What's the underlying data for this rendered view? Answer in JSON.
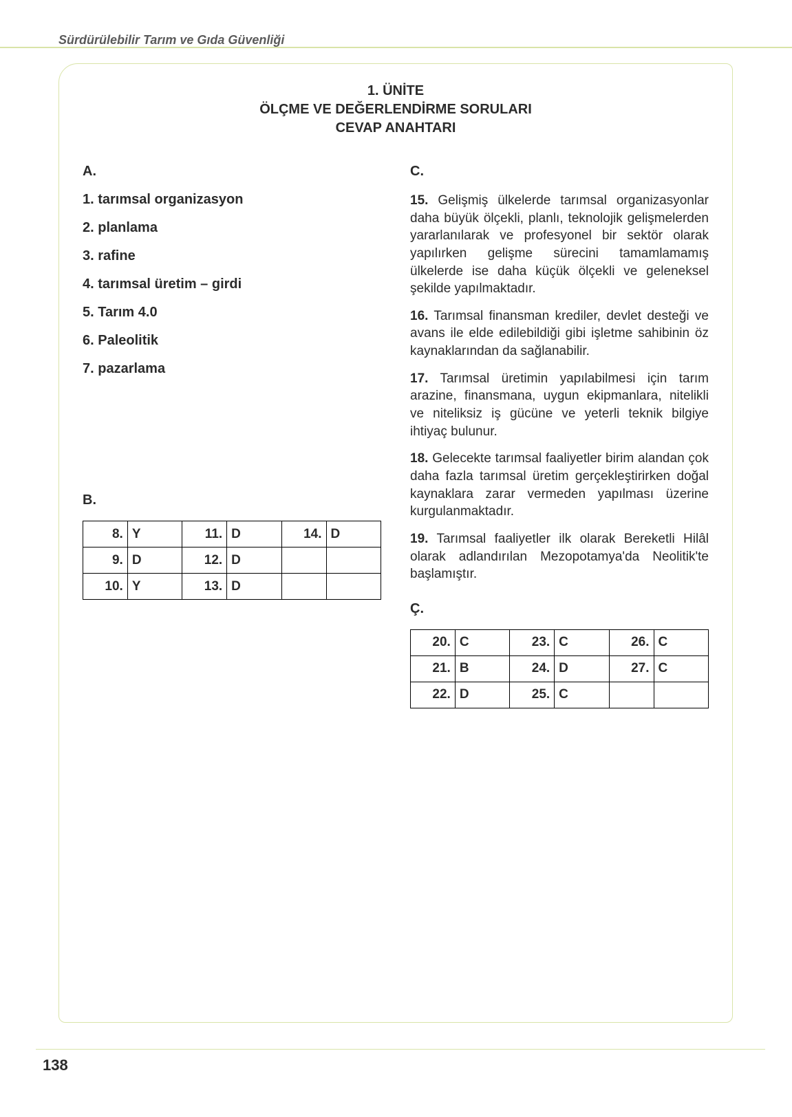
{
  "header": {
    "running_title": "Sürdürülebilir Tarım ve Gıda Güvenliği"
  },
  "title": {
    "line1": "1. ÜNİTE",
    "line2": "ÖLÇME VE DEĞERLENDİRME SORULARI",
    "line3": "CEVAP ANAHTARI"
  },
  "sectionA": {
    "label": "A.",
    "items": [
      "1. tarımsal organizasyon",
      "2. planlama",
      "3. rafine",
      "4. tarımsal üretim – girdi",
      "5. Tarım 4.0",
      "6. Paleolitik",
      "7. pazarlama"
    ]
  },
  "sectionB": {
    "label": "B.",
    "rows": [
      [
        {
          "n": "8.",
          "a": "Y"
        },
        {
          "n": "11.",
          "a": "D"
        },
        {
          "n": "14.",
          "a": "D"
        }
      ],
      [
        {
          "n": "9.",
          "a": "D"
        },
        {
          "n": "12.",
          "a": "D"
        },
        {
          "n": "",
          "a": ""
        }
      ],
      [
        {
          "n": "10.",
          "a": "Y"
        },
        {
          "n": "13.",
          "a": "D"
        },
        {
          "n": "",
          "a": ""
        }
      ]
    ]
  },
  "sectionC": {
    "label": "C.",
    "paras": [
      {
        "n": "15.",
        "t": "Gelişmiş ülkelerde tarımsal organizasyonlar daha büyük ölçekli, planlı, teknolojik gelişmelerden yararlanılarak ve profesyonel bir sektör olarak yapılırken gelişme sürecini tamamlamamış ülkelerde ise daha küçük ölçekli ve geleneksel şekilde yapılmaktadır."
      },
      {
        "n": "16.",
        "t": "Tarımsal finansman krediler, devlet desteği ve avans ile elde edilebildiği gibi işletme sahibinin öz kaynaklarından da sağlanabilir."
      },
      {
        "n": "17.",
        "t": "Tarımsal üretimin yapılabilmesi için tarım arazine, finansmana, uygun ekipmanlara, nitelikli ve niteliksiz iş gücüne ve yeterli teknik bilgiye ihtiyaç bulunur."
      },
      {
        "n": "18.",
        "t": "Gelecekte tarımsal faaliyetler birim alandan çok daha fazla tarımsal üretim gerçekleştirirken doğal kaynaklara zarar vermeden yapılması üzerine kurgulanmaktadır."
      },
      {
        "n": "19.",
        "t": "Tarımsal faaliyetler ilk olarak Bereketli Hilâl olarak adlandırılan Mezopotamya'da Neolitik'te başlamıştır."
      }
    ]
  },
  "sectionCcedil": {
    "label": "Ç.",
    "rows": [
      [
        {
          "n": "20.",
          "a": "C"
        },
        {
          "n": "23.",
          "a": "C"
        },
        {
          "n": "26.",
          "a": "C"
        }
      ],
      [
        {
          "n": "21.",
          "a": "B"
        },
        {
          "n": "24.",
          "a": "D"
        },
        {
          "n": "27.",
          "a": "C"
        }
      ],
      [
        {
          "n": "22.",
          "a": "D"
        },
        {
          "n": "25.",
          "a": "C"
        },
        {
          "n": "",
          "a": ""
        }
      ]
    ]
  },
  "page_number": "138",
  "colors": {
    "rule": "#d9e4a8",
    "text": "#2b2b2b"
  }
}
